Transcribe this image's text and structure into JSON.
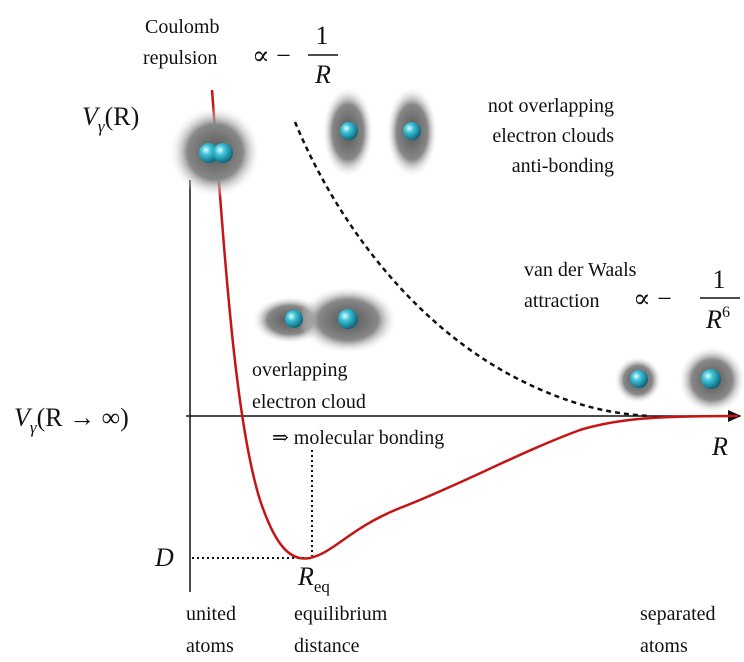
{
  "axes": {
    "y_label": {
      "base": "V",
      "sub": "γ",
      "arg": "(R)"
    },
    "x_label": "R",
    "asymptote_label": {
      "base": "V",
      "sub": "γ",
      "arg": "(R → ∞)"
    },
    "depth_label": "D",
    "eq_label": {
      "base": "R",
      "sub": "eq"
    }
  },
  "annotations": {
    "coulomb": {
      "lines": [
        "Coulomb",
        "repulsion"
      ],
      "proportional": "∝ −",
      "numerator": "1",
      "denominator": "R"
    },
    "anti_bonding": [
      "not overlapping",
      "electron clouds",
      "anti-bonding"
    ],
    "van_der_waals": {
      "lines": [
        "van der Waals",
        "attraction"
      ],
      "proportional": "∝ −",
      "numerator": "1",
      "denominator": {
        "base": "R",
        "sup": "6"
      }
    },
    "bonding": [
      "overlapping",
      "electron cloud",
      "⇒ molecular bonding"
    ]
  },
  "x_regions": [
    {
      "lines": [
        "united",
        "atoms"
      ]
    },
    {
      "lines": [
        "equilibrium",
        "distance"
      ]
    },
    {
      "lines": [
        "separated",
        "atoms"
      ]
    }
  ]
}
